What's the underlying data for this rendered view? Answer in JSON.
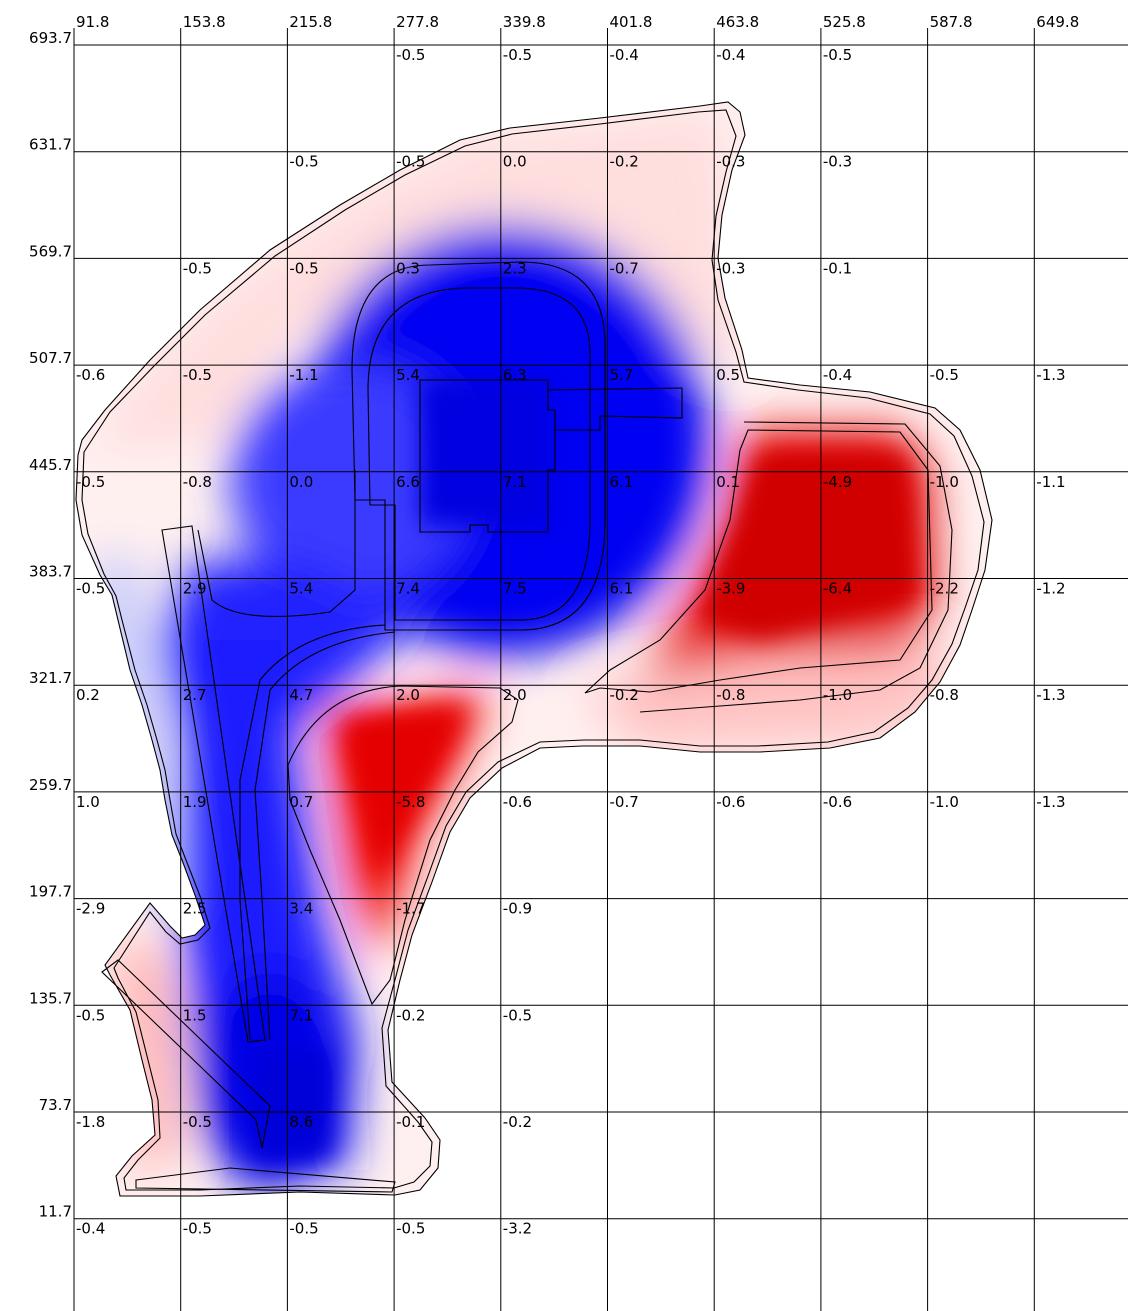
{
  "chart_data": {
    "type": "heatmap",
    "title": "",
    "xlabel": "",
    "ylabel": "",
    "x_ticks": [
      "91.8",
      "153.8",
      "215.8",
      "277.8",
      "339.8",
      "401.8",
      "463.8",
      "525.8",
      "587.8",
      "649.8"
    ],
    "y_ticks": [
      "693.7",
      "631.7",
      "569.7",
      "507.7",
      "445.7",
      "383.7",
      "321.7",
      "259.7",
      "197.7",
      "135.7",
      "73.7",
      "11.7"
    ],
    "xlim": [
      91.8,
      711.8
    ],
    "ylim": [
      -50.3,
      693.7
    ],
    "grid": true,
    "color_scale": {
      "positive": "#0000ff",
      "negative": "#ff0000",
      "zero": "#ffffff"
    },
    "cells": [
      {
        "x": 277.8,
        "y": 693.7,
        "value": "-0.5"
      },
      {
        "x": 339.8,
        "y": 693.7,
        "value": "-0.5"
      },
      {
        "x": 401.8,
        "y": 693.7,
        "value": "-0.4"
      },
      {
        "x": 463.8,
        "y": 693.7,
        "value": "-0.4"
      },
      {
        "x": 525.8,
        "y": 693.7,
        "value": "-0.5"
      },
      {
        "x": 215.8,
        "y": 631.7,
        "value": "-0.5"
      },
      {
        "x": 277.8,
        "y": 631.7,
        "value": "-0.5"
      },
      {
        "x": 339.8,
        "y": 631.7,
        "value": "0.0"
      },
      {
        "x": 401.8,
        "y": 631.7,
        "value": "-0.2"
      },
      {
        "x": 463.8,
        "y": 631.7,
        "value": "-0.3"
      },
      {
        "x": 525.8,
        "y": 631.7,
        "value": "-0.3"
      },
      {
        "x": 153.8,
        "y": 569.7,
        "value": "-0.5"
      },
      {
        "x": 215.8,
        "y": 569.7,
        "value": "-0.5"
      },
      {
        "x": 277.8,
        "y": 569.7,
        "value": "0.3"
      },
      {
        "x": 339.8,
        "y": 569.7,
        "value": "2.3"
      },
      {
        "x": 401.8,
        "y": 569.7,
        "value": "-0.7"
      },
      {
        "x": 463.8,
        "y": 569.7,
        "value": "-0.3"
      },
      {
        "x": 525.8,
        "y": 569.7,
        "value": "-0.1"
      },
      {
        "x": 91.8,
        "y": 507.7,
        "value": "-0.6"
      },
      {
        "x": 153.8,
        "y": 507.7,
        "value": "-0.5"
      },
      {
        "x": 215.8,
        "y": 507.7,
        "value": "-1.1"
      },
      {
        "x": 277.8,
        "y": 507.7,
        "value": "5.4"
      },
      {
        "x": 339.8,
        "y": 507.7,
        "value": "6.3"
      },
      {
        "x": 401.8,
        "y": 507.7,
        "value": "5.7"
      },
      {
        "x": 463.8,
        "y": 507.7,
        "value": "0.5"
      },
      {
        "x": 525.8,
        "y": 507.7,
        "value": "-0.4"
      },
      {
        "x": 587.8,
        "y": 507.7,
        "value": "-0.5"
      },
      {
        "x": 649.8,
        "y": 507.7,
        "value": "-1.3"
      },
      {
        "x": 91.8,
        "y": 445.7,
        "value": "-0.5"
      },
      {
        "x": 153.8,
        "y": 445.7,
        "value": "-0.8"
      },
      {
        "x": 215.8,
        "y": 445.7,
        "value": "0.0"
      },
      {
        "x": 277.8,
        "y": 445.7,
        "value": "6.6"
      },
      {
        "x": 339.8,
        "y": 445.7,
        "value": "7.1"
      },
      {
        "x": 401.8,
        "y": 445.7,
        "value": "6.1"
      },
      {
        "x": 463.8,
        "y": 445.7,
        "value": "0.1"
      },
      {
        "x": 525.8,
        "y": 445.7,
        "value": "-4.9"
      },
      {
        "x": 587.8,
        "y": 445.7,
        "value": "-1.0"
      },
      {
        "x": 649.8,
        "y": 445.7,
        "value": "-1.1"
      },
      {
        "x": 91.8,
        "y": 383.7,
        "value": "-0.5"
      },
      {
        "x": 153.8,
        "y": 383.7,
        "value": "2.9"
      },
      {
        "x": 215.8,
        "y": 383.7,
        "value": "5.4"
      },
      {
        "x": 277.8,
        "y": 383.7,
        "value": "7.4"
      },
      {
        "x": 339.8,
        "y": 383.7,
        "value": "7.5"
      },
      {
        "x": 401.8,
        "y": 383.7,
        "value": "6.1"
      },
      {
        "x": 463.8,
        "y": 383.7,
        "value": "-3.9"
      },
      {
        "x": 525.8,
        "y": 383.7,
        "value": "-6.4"
      },
      {
        "x": 587.8,
        "y": 383.7,
        "value": "-2.2"
      },
      {
        "x": 649.8,
        "y": 383.7,
        "value": "-1.2"
      },
      {
        "x": 91.8,
        "y": 321.7,
        "value": "0.2"
      },
      {
        "x": 153.8,
        "y": 321.7,
        "value": "2.7"
      },
      {
        "x": 215.8,
        "y": 321.7,
        "value": "4.7"
      },
      {
        "x": 277.8,
        "y": 321.7,
        "value": "2.0"
      },
      {
        "x": 339.8,
        "y": 321.7,
        "value": "2.0"
      },
      {
        "x": 401.8,
        "y": 321.7,
        "value": "-0.2"
      },
      {
        "x": 463.8,
        "y": 321.7,
        "value": "-0.8"
      },
      {
        "x": 525.8,
        "y": 321.7,
        "value": "-1.0"
      },
      {
        "x": 587.8,
        "y": 321.7,
        "value": "-0.8"
      },
      {
        "x": 649.8,
        "y": 321.7,
        "value": "-1.3"
      },
      {
        "x": 91.8,
        "y": 259.7,
        "value": "1.0"
      },
      {
        "x": 153.8,
        "y": 259.7,
        "value": "1.9"
      },
      {
        "x": 215.8,
        "y": 259.7,
        "value": "0.7"
      },
      {
        "x": 277.8,
        "y": 259.7,
        "value": "-5.8"
      },
      {
        "x": 339.8,
        "y": 259.7,
        "value": "-0.6"
      },
      {
        "x": 401.8,
        "y": 259.7,
        "value": "-0.7"
      },
      {
        "x": 463.8,
        "y": 259.7,
        "value": "-0.6"
      },
      {
        "x": 525.8,
        "y": 259.7,
        "value": "-0.6"
      },
      {
        "x": 587.8,
        "y": 259.7,
        "value": "-1.0"
      },
      {
        "x": 649.8,
        "y": 259.7,
        "value": "-1.3"
      },
      {
        "x": 91.8,
        "y": 197.7,
        "value": "-2.9"
      },
      {
        "x": 153.8,
        "y": 197.7,
        "value": "2.5"
      },
      {
        "x": 215.8,
        "y": 197.7,
        "value": "3.4"
      },
      {
        "x": 277.8,
        "y": 197.7,
        "value": "-1.7"
      },
      {
        "x": 339.8,
        "y": 197.7,
        "value": "-0.9"
      },
      {
        "x": 91.8,
        "y": 135.7,
        "value": "-0.5"
      },
      {
        "x": 153.8,
        "y": 135.7,
        "value": "1.5"
      },
      {
        "x": 215.8,
        "y": 135.7,
        "value": "7.1"
      },
      {
        "x": 277.8,
        "y": 135.7,
        "value": "-0.2"
      },
      {
        "x": 339.8,
        "y": 135.7,
        "value": "-0.5"
      },
      {
        "x": 91.8,
        "y": 73.7,
        "value": "-1.8"
      },
      {
        "x": 153.8,
        "y": 73.7,
        "value": "-0.5"
      },
      {
        "x": 215.8,
        "y": 73.7,
        "value": "8.6"
      },
      {
        "x": 277.8,
        "y": 73.7,
        "value": "-0.1"
      },
      {
        "x": 339.8,
        "y": 73.7,
        "value": "-0.2"
      },
      {
        "x": 91.8,
        "y": 11.7,
        "value": "-0.4"
      },
      {
        "x": 153.8,
        "y": 11.7,
        "value": "-0.5"
      },
      {
        "x": 215.8,
        "y": 11.7,
        "value": "-0.5"
      },
      {
        "x": 277.8,
        "y": 11.7,
        "value": "-0.5"
      },
      {
        "x": 339.8,
        "y": 11.7,
        "value": "-3.2"
      }
    ]
  }
}
